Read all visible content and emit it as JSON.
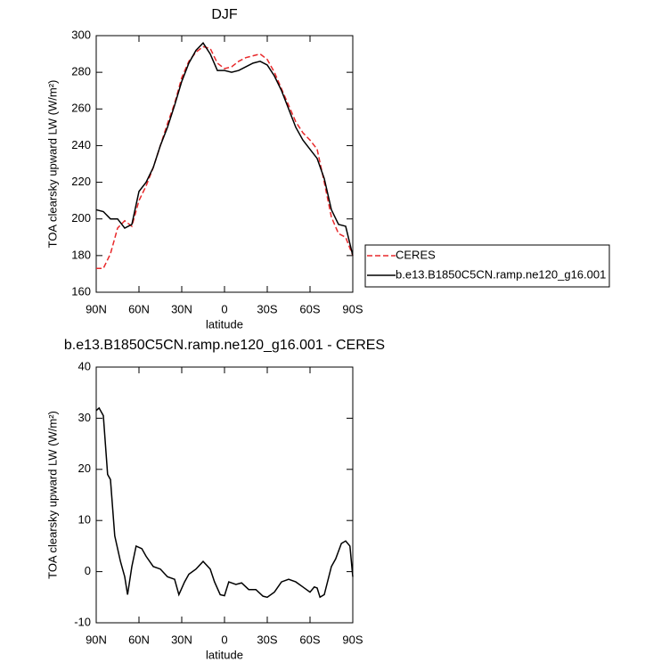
{
  "chart_data": [
    {
      "type": "line",
      "title": "DJF",
      "x_label": "latitude",
      "y_label": "TOA clearsky upward LW (W/m²)",
      "x": [
        90,
        85,
        80,
        75,
        70,
        65,
        60,
        55,
        50,
        45,
        40,
        35,
        30,
        25,
        20,
        15,
        10,
        5,
        0,
        -5,
        -10,
        -15,
        -20,
        -25,
        -30,
        -35,
        -40,
        -45,
        -50,
        -55,
        -60,
        -65,
        -70,
        -75,
        -80,
        -85,
        -90
      ],
      "series": [
        {
          "name": "CERES",
          "color": "#e8292b",
          "line_style": "dashed",
          "values": [
            173,
            173,
            181,
            195,
            199,
            196,
            210,
            218,
            228,
            240,
            252,
            263,
            277,
            286,
            291,
            294,
            293,
            285,
            282,
            283,
            286,
            288,
            289,
            290,
            287,
            280,
            271,
            262,
            253,
            247,
            243,
            238,
            220,
            201,
            192,
            190,
            180
          ]
        },
        {
          "name": "b.e13.B1850C5CN.ramp.ne120_g16.001",
          "color": "#000000",
          "line_style": "solid",
          "values": [
            205,
            204,
            200,
            200,
            195,
            197,
            215,
            220,
            228,
            240,
            250,
            262,
            275,
            285,
            292,
            296,
            290,
            281,
            281,
            280,
            281,
            283,
            285,
            286,
            284,
            278,
            270,
            260,
            250,
            243,
            238,
            233,
            222,
            205,
            197,
            196,
            180
          ]
        }
      ],
      "xlim": [
        90,
        -90
      ],
      "xticks": [
        {
          "value": 90,
          "label": "90N"
        },
        {
          "value": 60,
          "label": "60N"
        },
        {
          "value": 30,
          "label": "30N"
        },
        0,
        {
          "value": -30,
          "label": "30S"
        },
        {
          "value": -60,
          "label": "60S"
        },
        {
          "value": -90,
          "label": "90S"
        }
      ],
      "ylim": [
        160,
        300
      ],
      "yticks": [
        160,
        180,
        200,
        220,
        240,
        260,
        280,
        300
      ],
      "legend": "right"
    },
    {
      "type": "line",
      "title": "b.e13.B1850C5CN.ramp.ne120_g16.001 - CERES",
      "x_label": "latitude",
      "y_label": "TOA clearsky upward LW (W/m²)",
      "x": [
        90,
        88,
        85,
        82,
        80,
        77,
        73,
        70,
        68,
        65,
        62,
        58,
        55,
        50,
        45,
        40,
        35,
        32,
        28,
        25,
        20,
        15,
        10,
        7,
        3,
        0,
        -3,
        -8,
        -12,
        -17,
        -22,
        -27,
        -30,
        -35,
        -40,
        -45,
        -50,
        -55,
        -60,
        -63,
        -65,
        -67,
        -70,
        -75,
        -78,
        -82,
        -85,
        -88,
        -90
      ],
      "series": [
        {
          "color": "#000000",
          "line_style": "solid",
          "values": [
            31.5,
            32,
            30.5,
            19,
            18,
            7,
            2,
            -1,
            -4.5,
            1,
            5,
            4.5,
            3,
            1,
            0.5,
            -1,
            -1.5,
            -4.5,
            -2,
            -0.5,
            0.5,
            2,
            0.5,
            -2,
            -4.5,
            -4.7,
            -2,
            -2.5,
            -2.2,
            -3.5,
            -3.5,
            -4.8,
            -5,
            -4,
            -2,
            -1.5,
            -2,
            -3,
            -4,
            -3,
            -3.2,
            -5,
            -4.5,
            1,
            2.5,
            5.5,
            6,
            5,
            -1
          ]
        }
      ],
      "xlim": [
        90,
        -90
      ],
      "xticks": [
        {
          "value": 90,
          "label": "90N"
        },
        {
          "value": 60,
          "label": "60N"
        },
        {
          "value": 30,
          "label": "30N"
        },
        0,
        {
          "value": -30,
          "label": "30S"
        },
        {
          "value": -60,
          "label": "60S"
        },
        {
          "value": -90,
          "label": "90S"
        }
      ],
      "ylim": [
        -10,
        40
      ],
      "yticks": [
        -10,
        0,
        10,
        20,
        30,
        40
      ]
    }
  ]
}
